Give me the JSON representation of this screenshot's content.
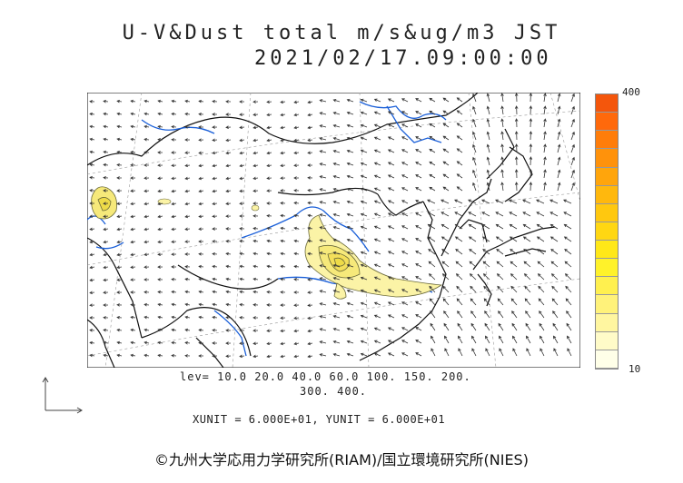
{
  "title": "U-V&Dust total m/s&ug/m3 JST",
  "datetime": "2021/02/17.09:00:00",
  "colorbar": {
    "max_label": "400",
    "min_label": "10",
    "colors": [
      "#ffffe8",
      "#fffbc8",
      "#fff6a0",
      "#fff27a",
      "#fff04f",
      "#fff22a",
      "#ffe818",
      "#ffd712",
      "#ffc80f",
      "#ffb80d",
      "#ffa50c",
      "#ff920b",
      "#ff7d0a",
      "#ff690b",
      "#f4560c"
    ]
  },
  "levels": {
    "line1": "lev= 10.0 20.0 40.0 60.0 100. 150. 200.",
    "line2": "300. 400."
  },
  "units": "XUNIT = 6.000E+01, YUNIT = 6.000E+01",
  "copyright": "©九州大学応用力学研究所(RIAM)/国立環境研究所(NIES)",
  "map_colors": {
    "coast": "#111111",
    "rivers": "#1a5fd8",
    "dust_fill": "#fbf3a6",
    "contour": "#6b6a3a",
    "wind": "#333333"
  }
}
